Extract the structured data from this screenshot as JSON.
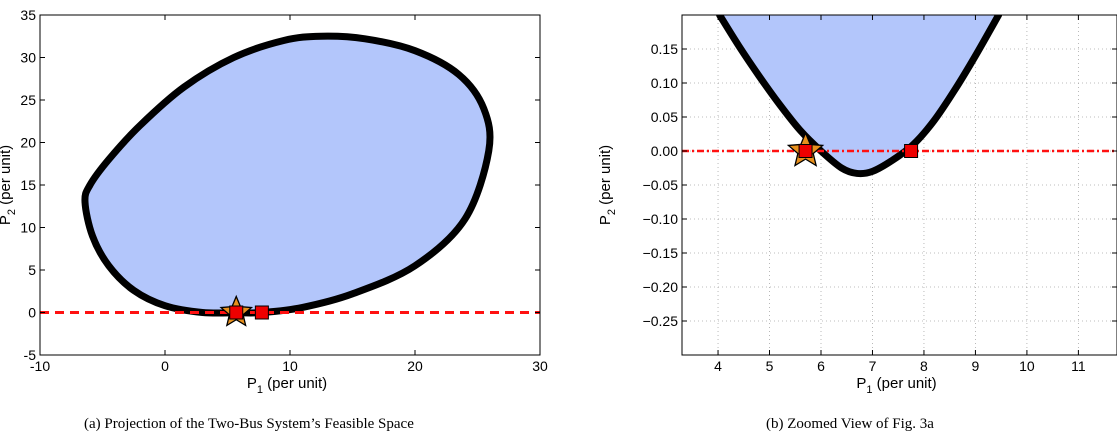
{
  "chart_data": [
    {
      "type": "area",
      "caption": "(a) Projection of the Two-Bus System’s Feasible Space",
      "xlabel": {
        "main": "P",
        "sub": "1",
        "unit": " (per unit)"
      },
      "ylabel": {
        "main": "P",
        "sub": "2",
        "unit": " (per unit)"
      },
      "xlim": [
        -10,
        30
      ],
      "ylim": [
        -5,
        35
      ],
      "xticks": [
        -10,
        0,
        10,
        20,
        30
      ],
      "yticks": [
        -5,
        0,
        5,
        10,
        15,
        20,
        25,
        30,
        35
      ],
      "grid": false,
      "fill_color": "#b3c6fb",
      "boundary_color": "#000000",
      "region_boundary": {
        "x": [
          -6.4,
          -5.8,
          -4.5,
          -2.5,
          0.0,
          3.0,
          5.8,
          7.8,
          11.0,
          15.0,
          20.0,
          24.0,
          25.9,
          25.5,
          23.5,
          20.0,
          16.0,
          12.5,
          9.5,
          5.5,
          1.5,
          -2.0,
          -4.5,
          -6.0
        ],
        "y": [
          13.0,
          9.0,
          5.5,
          2.6,
          0.8,
          0.0,
          -0.03,
          0.0,
          0.6,
          2.2,
          5.5,
          11.0,
          19.0,
          24.0,
          28.0,
          30.8,
          32.2,
          32.5,
          32.0,
          30.0,
          26.5,
          22.0,
          18.0,
          15.0
        ]
      },
      "dashed_line": {
        "y": 0,
        "color": "#ff1111"
      },
      "markers": [
        {
          "name": "star",
          "x": 5.7,
          "y": 0.0,
          "color": "#e8901c"
        },
        {
          "name": "square",
          "x": 5.7,
          "y": 0.0,
          "color": "#ee0000"
        },
        {
          "name": "square",
          "x": 7.75,
          "y": 0.0,
          "color": "#ee0000"
        }
      ]
    },
    {
      "type": "area",
      "caption": "(b) Zoomed View of Fig. 3a",
      "xlabel": {
        "main": "P",
        "sub": "1",
        "unit": " (per unit)"
      },
      "ylabel": {
        "main": "P",
        "sub": "2",
        "unit": " (per unit)"
      },
      "xlim": [
        3.3,
        11.75
      ],
      "ylim": [
        -0.3,
        0.2
      ],
      "xticks": [
        4,
        5,
        6,
        7,
        8,
        9,
        10,
        11
      ],
      "xtick_labels": [
        "4",
        "5",
        "6",
        "7",
        "8",
        "9",
        "10",
        "11"
      ],
      "yticks": [
        0.15,
        0.1,
        0.05,
        0.0,
        -0.05,
        -0.1,
        -0.15,
        -0.2,
        -0.25
      ],
      "ytick_labels": [
        "0.15",
        "0.10",
        "0.05",
        "0.00",
        "−0.05",
        "−0.10",
        "−0.15",
        "−0.20",
        "−0.25"
      ],
      "grid": true,
      "fill_color": "#b3c6fb",
      "boundary_color": "#000000",
      "region_boundary": {
        "x": [
          4.03,
          4.4,
          4.8,
          5.2,
          5.6,
          6.0,
          6.4,
          6.7,
          7.0,
          7.4,
          7.8,
          8.2,
          8.6,
          9.0,
          9.45
        ],
        "y": [
          0.2,
          0.155,
          0.11,
          0.068,
          0.03,
          0.0,
          -0.025,
          -0.033,
          -0.03,
          -0.013,
          0.01,
          0.045,
          0.09,
          0.14,
          0.2
        ]
      },
      "dashed_line": {
        "y": 0,
        "color": "#ff1111"
      },
      "markers": [
        {
          "name": "star",
          "x": 5.7,
          "y": 0.0,
          "color": "#e8901c"
        },
        {
          "name": "square",
          "x": 5.7,
          "y": 0.0,
          "color": "#ee0000"
        },
        {
          "name": "square",
          "x": 7.75,
          "y": 0.0,
          "color": "#ee0000"
        }
      ]
    }
  ]
}
